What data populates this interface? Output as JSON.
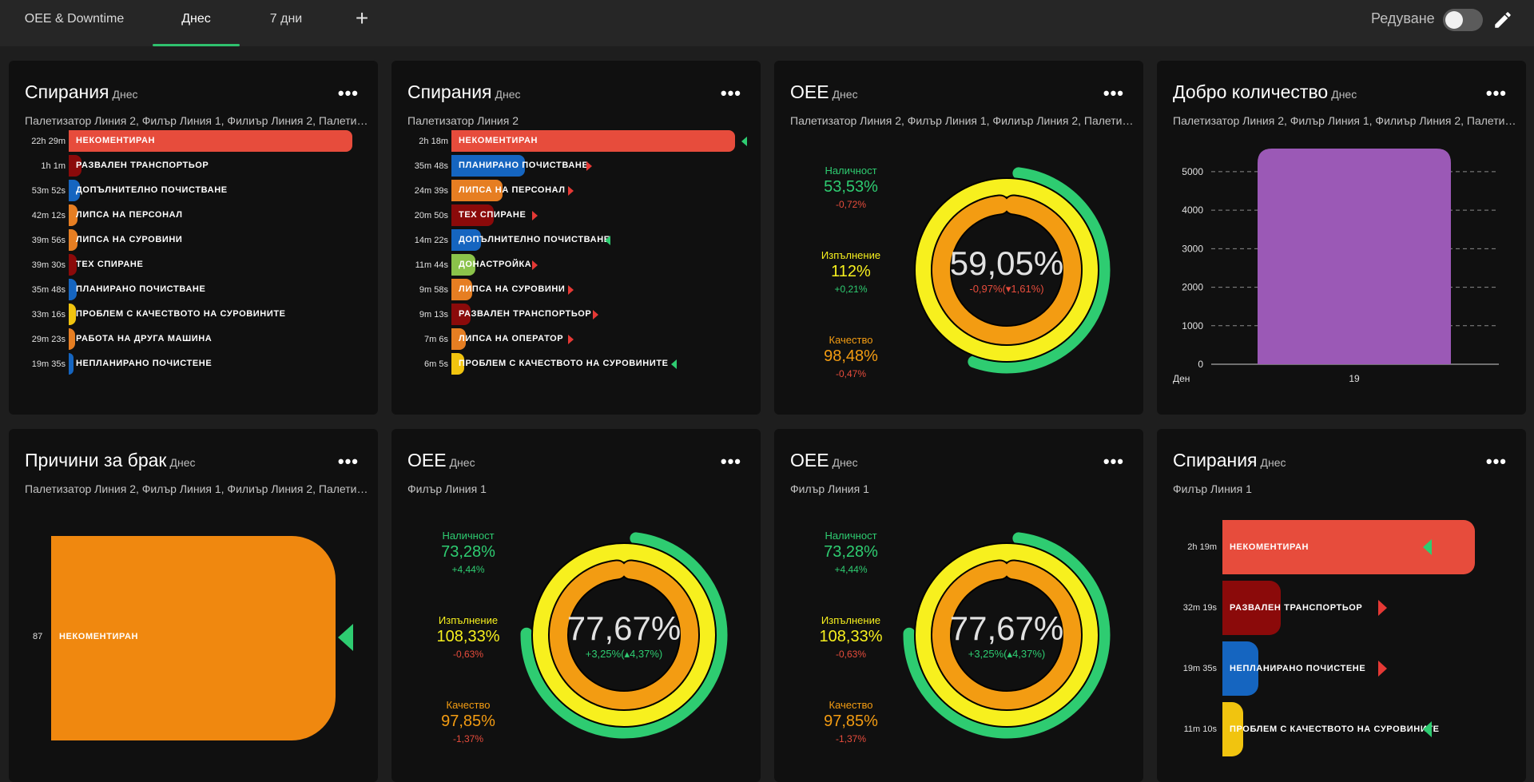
{
  "header": {
    "tabs": [
      {
        "label": "OEE & Downtime"
      },
      {
        "label": "Днес"
      },
      {
        "label": "7 дни"
      }
    ],
    "edit_label": "Редуване",
    "edit_toggle_on": false
  },
  "cards": {
    "c1": {
      "title": "Спирания",
      "period": "Днес",
      "subtitle": "Палетизатор Линия 2, Филър Линия 1, Филиър Линия 2, Палетизатор Линия 1",
      "rows": [
        {
          "time": "22h 29m",
          "label": "НЕКОМЕНТИРАН",
          "color": "#e74c3c",
          "fraction": 1.0
        },
        {
          "time": "1h 1m",
          "label": "РАЗВАЛЕН ТРАНСПОРТЬОР",
          "color": "#8b0a0a",
          "fraction": 0.045
        },
        {
          "time": "53m 52s",
          "label": "ДОПЪЛНИТЕЛНО ПОЧИСТВАНЕ",
          "color": "#1565c0",
          "fraction": 0.04
        },
        {
          "time": "42m 12s",
          "label": "ЛИПСА НА ПЕРСОНАЛ",
          "color": "#e67e22",
          "fraction": 0.031
        },
        {
          "time": "39m 56s",
          "label": "ЛИПСА НА СУРОВИНИ",
          "color": "#e67e22",
          "fraction": 0.03
        },
        {
          "time": "39m 30s",
          "label": "ТЕХ СПИРАНЕ",
          "color": "#8b0a0a",
          "fraction": 0.029
        },
        {
          "time": "35m 48s",
          "label": "ПЛАНИРАНО ПОЧИСТВАНЕ",
          "color": "#1565c0",
          "fraction": 0.027
        },
        {
          "time": "33m 16s",
          "label": "ПРОБЛЕМ С КАЧЕСТВОТО НА СУРОВИНИТЕ",
          "color": "#f1c40f",
          "fraction": 0.025
        },
        {
          "time": "29m 23s",
          "label": "РАБОТА НА ДРУГА МАШИНА",
          "color": "#e67e22",
          "fraction": 0.022
        },
        {
          "time": "19m 35s",
          "label": "НЕПЛАНИРАНО ПОЧИСТЕНЕ",
          "color": "#1565c0",
          "fraction": 0.015
        }
      ]
    },
    "c2": {
      "title": "Спирания",
      "period": "Днес",
      "subtitle": "Палетизатор Линия 2",
      "rows": [
        {
          "time": "2h 18m",
          "label": "НЕКОМЕНТИРАН",
          "color": "#e74c3c",
          "fraction": 1.0,
          "trend": "down"
        },
        {
          "time": "35m 48s",
          "label": "ПЛАНИРАНО ПОЧИСТВАНЕ",
          "color": "#1565c0",
          "fraction": 0.26,
          "trend": "up"
        },
        {
          "time": "24m 39s",
          "label": "ЛИПСА НА ПЕРСОНАЛ",
          "color": "#e67e22",
          "fraction": 0.18,
          "trend": "up"
        },
        {
          "time": "20m 50s",
          "label": "ТЕХ СПИРАНЕ",
          "color": "#8b0a0a",
          "fraction": 0.15,
          "trend": "up"
        },
        {
          "time": "14m 22s",
          "label": "ДОПЪЛНИТЕЛНО ПОЧИСТВАНЕ",
          "color": "#1565c0",
          "fraction": 0.105,
          "trend": "down"
        },
        {
          "time": "11m 44s",
          "label": "ДОНАСТРОЙКА",
          "color": "#8bc34a",
          "fraction": 0.085,
          "trend": "up"
        },
        {
          "time": "9m 58s",
          "label": "ЛИПСА НА СУРОВИНИ",
          "color": "#e67e22",
          "fraction": 0.072,
          "trend": "up"
        },
        {
          "time": "9m 13s",
          "label": "РАЗВАЛЕН ТРАНСПОРТЬОР",
          "color": "#8b0a0a",
          "fraction": 0.067,
          "trend": "up"
        },
        {
          "time": "7m 6s",
          "label": "ЛИПСА НА ОПЕРАТОР",
          "color": "#e67e22",
          "fraction": 0.052,
          "trend": "up"
        },
        {
          "time": "6m 5s",
          "label": "ПРОБЛЕМ С КАЧЕСТВОТО НА СУРОВИНИТЕ",
          "color": "#f1c40f",
          "fraction": 0.044,
          "trend": "down"
        }
      ]
    },
    "c3": {
      "title": "OEE",
      "period": "Днес",
      "subtitle": "Палетизатор Линия 2, Филър Линия 1, Филиър Линия 2, Палетизатор Линия 1",
      "availability": {
        "name": "Наличност",
        "value": "53,53%",
        "delta": "-0,72%",
        "fraction": 0.5353
      },
      "performance": {
        "name": "Изпълнение",
        "value": "112%",
        "delta": "+0,21%",
        "fraction": 1.0
      },
      "quality": {
        "name": "Качество",
        "value": "98,48%",
        "delta": "-0,47%",
        "fraction": 0.9848
      },
      "oee": "59,05%",
      "oee_delta": "-0,97%(",
      "oee_delta_arrow": "▾",
      "oee_delta_rel": "1,61%)",
      "oee_delta_color": "#e74c3c"
    },
    "c4": {
      "title": "Добро количество",
      "period": "Днес",
      "subtitle": "Палетизатор Линия 2, Филър Линия 1, Филиър Линия 2, Палетизатор Линия 1",
      "chart_data": {
        "type": "bar",
        "categories": [
          "19"
        ],
        "values": [
          5600
        ],
        "xlabel": "Ден",
        "ylabel": "",
        "ylim": [
          0,
          5600
        ],
        "yticks": [
          "0",
          "1000",
          "2000",
          "3000",
          "4000",
          "5000"
        ],
        "color": "#9b59b6",
        "grid": true
      }
    },
    "c5": {
      "title": "Причини за брак",
      "period": "Днес",
      "subtitle": "Палетизатор Линия 2, Филър Линия 1, Филиър Линия 2, Палетизатор Линия 1",
      "chart_data": {
        "type": "bar",
        "categories": [
          "НЕКОМЕНТИРАН"
        ],
        "values": [
          87
        ],
        "color": "#f39c12"
      },
      "value_label": "87",
      "row_label": "НЕКОМЕНТИРАН"
    },
    "c6": {
      "title": "OEE",
      "period": "Днес",
      "subtitle": "Филър Линия 1",
      "availability": {
        "name": "Наличност",
        "value": "73,28%",
        "delta": "+4,44%",
        "fraction": 0.7328
      },
      "performance": {
        "name": "Изпълнение",
        "value": "108,33%",
        "delta": "-0,63%",
        "fraction": 1.0
      },
      "quality": {
        "name": "Качество",
        "value": "97,85%",
        "delta": "-1,37%",
        "fraction": 0.9785
      },
      "oee": "77,67%",
      "oee_delta": "+3,25%(",
      "oee_delta_arrow": "▴",
      "oee_delta_rel": "4,37%)",
      "oee_delta_color": "#2ecc71"
    },
    "c7": {
      "title": "OEE",
      "period": "Днес",
      "subtitle": "Филър Линия 1",
      "availability": {
        "name": "Наличност",
        "value": "73,28%",
        "delta": "+4,44%",
        "fraction": 0.7328
      },
      "performance": {
        "name": "Изпълнение",
        "value": "108,33%",
        "delta": "-0,63%",
        "fraction": 1.0
      },
      "quality": {
        "name": "Качество",
        "value": "97,85%",
        "delta": "-1,37%",
        "fraction": 0.9785
      },
      "oee": "77,67%",
      "oee_delta": "+3,25%(",
      "oee_delta_arrow": "▴",
      "oee_delta_rel": "4,37%)",
      "oee_delta_color": "#2ecc71"
    },
    "c8": {
      "title": "Спирания",
      "period": "Днес",
      "subtitle": "Филър Линия 1",
      "rows": [
        {
          "time": "2h 19m",
          "label": "НЕКОМЕНТИРАН",
          "color": "#e74c3c",
          "fraction": 1.0,
          "trend": "down"
        },
        {
          "time": "32m 19s",
          "label": "РАЗВАЛЕН ТРАНСПОРТЬОР",
          "color": "#8b0a0a",
          "fraction": 0.23,
          "trend": "up"
        },
        {
          "time": "19m 35s",
          "label": "НЕПЛАНИРАНО ПОЧИСТЕНЕ",
          "color": "#1565c0",
          "fraction": 0.141,
          "trend": "up"
        },
        {
          "time": "11m 10s",
          "label": "ПРОБЛЕМ С КАЧЕСТВОТО НА СУРОВИНИТЕ",
          "color": "#f1c40f",
          "fraction": 0.08,
          "trend": "down"
        }
      ]
    }
  },
  "colors": {
    "availability": "#2ecc71",
    "performance": "#f7f01e",
    "quality": "#f39c12",
    "delta_up": "#2ecc71",
    "delta_down": "#e74c3c"
  }
}
